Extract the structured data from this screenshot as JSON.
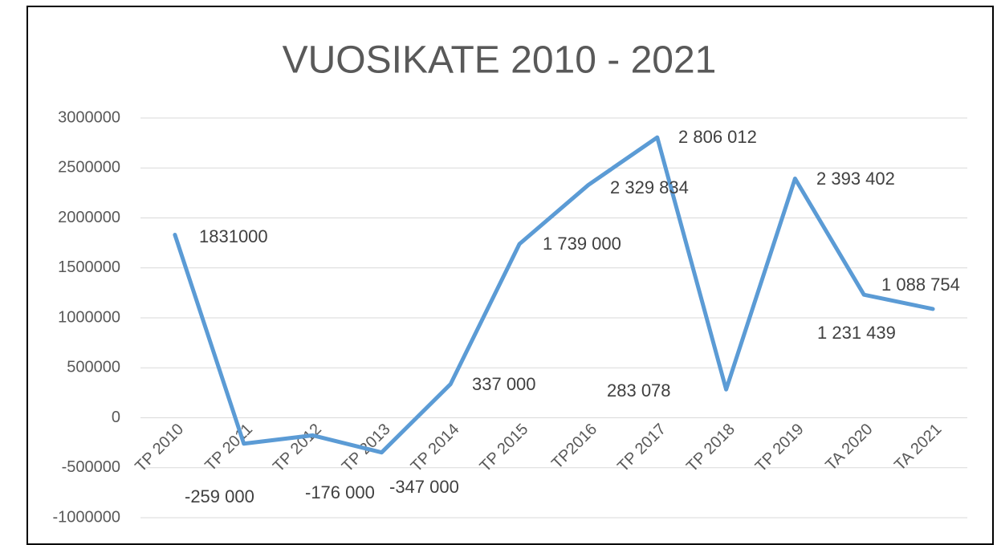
{
  "chart_data": {
    "type": "line",
    "title": "VUOSIKATE 2010 - 2021",
    "categories": [
      "TP 2010",
      "TP 2011",
      "TP 2012",
      "TP 2013",
      "TP 2014",
      "TP 2015",
      "TP2016",
      "TP 2017",
      "TP 2018",
      "TP 2019",
      "TA 2020",
      "TA 2021"
    ],
    "series": [
      {
        "name": "Vuosikate",
        "color": "#5b9bd5",
        "values": [
          1831000,
          -259000,
          -176000,
          -347000,
          337000,
          1739000,
          2329834,
          2806012,
          283078,
          2393402,
          1231439,
          1088754
        ],
        "value_labels": [
          "1831000",
          "-259 000",
          "-176 000",
          "-347 000",
          "337 000",
          "1 739 000",
          "2 329 834",
          "2 806 012",
          "283 078",
          "2 393 402",
          "1 231 439",
          "1 088 754"
        ]
      }
    ],
    "ylim": [
      -1000000,
      3000000
    ],
    "yticks": [
      -1000000,
      -500000,
      0,
      500000,
      1000000,
      1500000,
      2000000,
      2500000,
      3000000
    ],
    "grid": true
  }
}
